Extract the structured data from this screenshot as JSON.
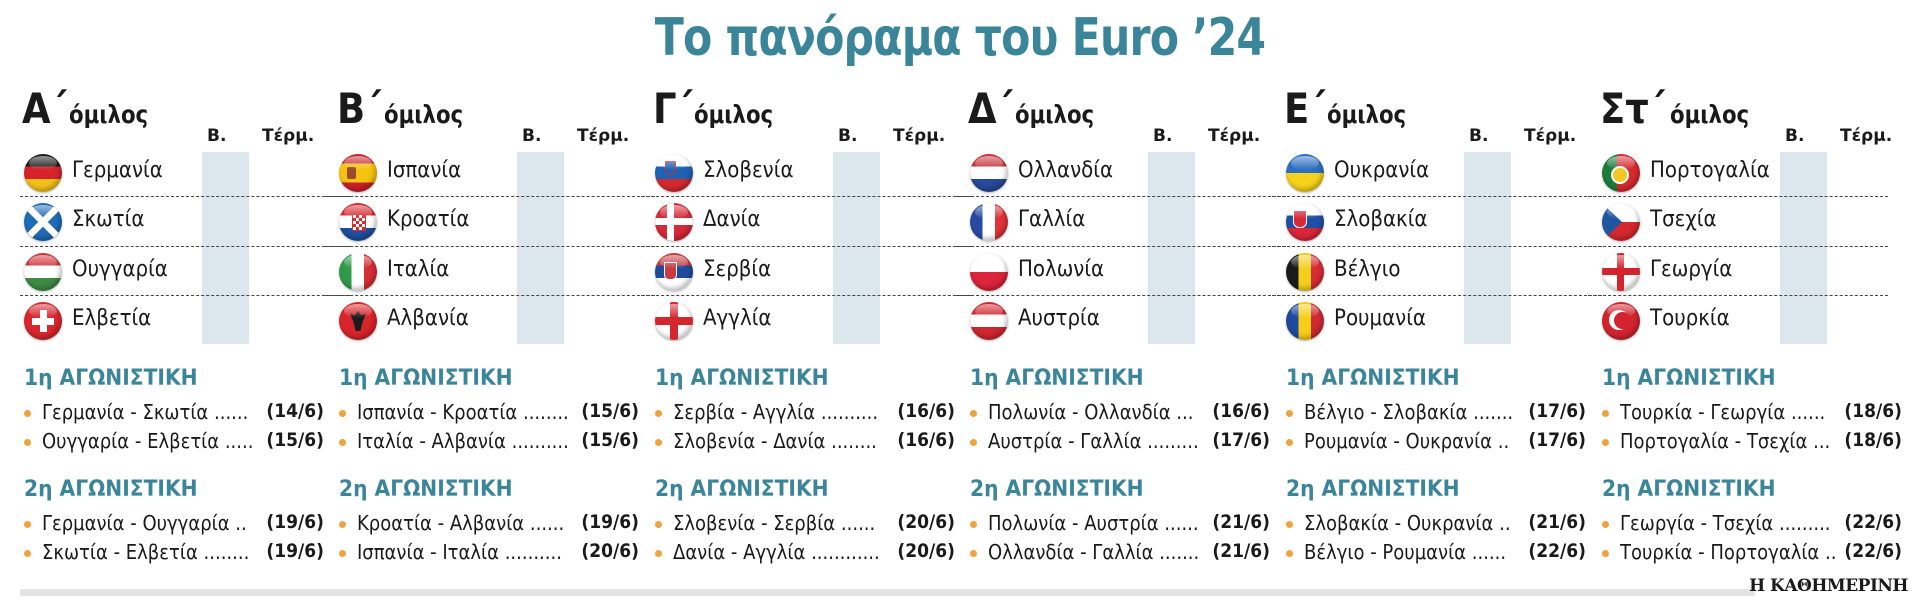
{
  "title": "Το πανόραμα του Euro ’24",
  "column_headers": {
    "points": "Β.",
    "goals": "Τέρμ."
  },
  "group_word": "όμιλος",
  "round_labels": {
    "first": "1η ΑΓΩΝΙΣΤΙΚΗ",
    "second": "2η ΑΓΩΝΙΣΤΙΚΗ"
  },
  "groups": [
    {
      "letter": "Α΄",
      "teams": [
        {
          "name": "Γερμανία",
          "flag": "de"
        },
        {
          "name": "Σκωτία",
          "flag": "sco"
        },
        {
          "name": "Ουγγαρία",
          "flag": "hu"
        },
        {
          "name": "Ελβετία",
          "flag": "ch"
        }
      ],
      "round1": [
        {
          "fixture": "Γερμανία - Σκωτία ......",
          "date": "(14/6)"
        },
        {
          "fixture": "Ουγγαρία - Ελβετία .....",
          "date": "(15/6)"
        }
      ],
      "round2": [
        {
          "fixture": "Γερμανία - Ουγγαρία ..",
          "date": "(19/6)"
        },
        {
          "fixture": "Σκωτία - Ελβετία ........",
          "date": "(19/6)"
        }
      ]
    },
    {
      "letter": "Β΄",
      "teams": [
        {
          "name": "Ισπανία",
          "flag": "es"
        },
        {
          "name": "Κροατία",
          "flag": "hr"
        },
        {
          "name": "Ιταλία",
          "flag": "it"
        },
        {
          "name": "Αλβανία",
          "flag": "al"
        }
      ],
      "round1": [
        {
          "fixture": "Ισπανία - Κροατία ........",
          "date": "(15/6)"
        },
        {
          "fixture": "Ιταλία - Αλβανία ..........",
          "date": "(15/6)"
        }
      ],
      "round2": [
        {
          "fixture": "Κροατία - Αλβανία ......",
          "date": "(19/6)"
        },
        {
          "fixture": "Ισπανία - Ιταλία ..........",
          "date": "(20/6)"
        }
      ]
    },
    {
      "letter": "Γ΄",
      "teams": [
        {
          "name": "Σλοβενία",
          "flag": "si"
        },
        {
          "name": "Δανία",
          "flag": "dk"
        },
        {
          "name": "Σερβία",
          "flag": "rs"
        },
        {
          "name": "Αγγλία",
          "flag": "en"
        }
      ],
      "round1": [
        {
          "fixture": "Σερβία - Αγγλία ..........",
          "date": "(16/6)"
        },
        {
          "fixture": "Σλοβενία - Δανία ........",
          "date": "(16/6)"
        }
      ],
      "round2": [
        {
          "fixture": "Σλοβενία - Σερβία ......",
          "date": "(20/6)"
        },
        {
          "fixture": "Δανία - Αγγλία ............",
          "date": "(20/6)"
        }
      ]
    },
    {
      "letter": "Δ΄",
      "teams": [
        {
          "name": "Ολλανδία",
          "flag": "nl"
        },
        {
          "name": "Γαλλία",
          "flag": "fr"
        },
        {
          "name": "Πολωνία",
          "flag": "pl"
        },
        {
          "name": "Αυστρία",
          "flag": "at"
        }
      ],
      "round1": [
        {
          "fixture": "Πολωνία - Ολλανδία ...",
          "date": "(16/6)"
        },
        {
          "fixture": "Αυστρία - Γαλλία .........",
          "date": "(17/6)"
        }
      ],
      "round2": [
        {
          "fixture": "Πολωνία - Αυστρία ......",
          "date": "(21/6)"
        },
        {
          "fixture": "Ολλανδία - Γαλλία .......",
          "date": "(21/6)"
        }
      ]
    },
    {
      "letter": "Ε΄",
      "teams": [
        {
          "name": "Ουκρανία",
          "flag": "ua"
        },
        {
          "name": "Σλοβακία",
          "flag": "sk"
        },
        {
          "name": "Βέλγιο",
          "flag": "be"
        },
        {
          "name": "Ρουμανία",
          "flag": "ro"
        }
      ],
      "round1": [
        {
          "fixture": "Βέλγιο - Σλοβακία .......",
          "date": "(17/6)"
        },
        {
          "fixture": "Ρουμανία - Ουκρανία ..",
          "date": "(17/6)"
        }
      ],
      "round2": [
        {
          "fixture": "Σλοβακία - Ουκρανία ..",
          "date": "(21/6)"
        },
        {
          "fixture": "Βέλγιο - Ρουμανία ......",
          "date": "(22/6)"
        }
      ]
    },
    {
      "letter": "Στ΄",
      "teams": [
        {
          "name": "Πορτογαλία",
          "flag": "pt"
        },
        {
          "name": "Τσεχία",
          "flag": "cz"
        },
        {
          "name": "Γεωργία",
          "flag": "ge"
        },
        {
          "name": "Τουρκία",
          "flag": "tr"
        }
      ],
      "round1": [
        {
          "fixture": "Τουρκία - Γεωργία ......",
          "date": "(18/6)"
        },
        {
          "fixture": "Πορτογαλία - Τσεχία ...",
          "date": "(18/6)"
        }
      ],
      "round2": [
        {
          "fixture": "Γεωργία - Τσεχία .........",
          "date": "(22/6)"
        },
        {
          "fixture": "Τουρκία - Πορτογαλία ..",
          "date": "(22/6)"
        }
      ]
    }
  ],
  "footer": {
    "brand": "Η ΚΑΘΗΜΕΡΙΝΗ"
  },
  "colors": {
    "accent": "#3a8599",
    "bullet": "#f0a23e",
    "points_column": "#dbe6ed",
    "text": "#1a1a1a"
  }
}
